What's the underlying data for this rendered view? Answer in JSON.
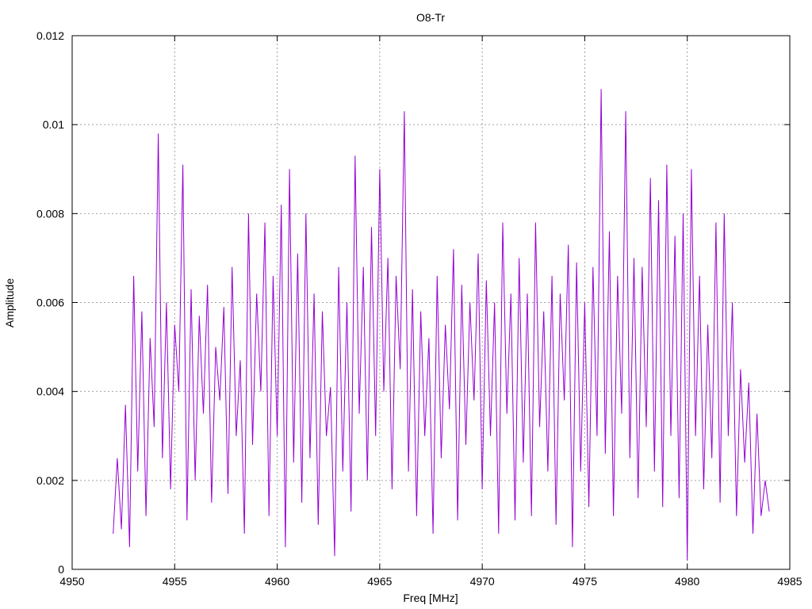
{
  "chart_data": {
    "type": "line",
    "title": "O8-Tr",
    "xlabel": "Freq [MHz]",
    "ylabel": "Amplitude",
    "xlim": [
      4950,
      4985
    ],
    "ylim": [
      0,
      0.012
    ],
    "x_ticks": [
      4950,
      4955,
      4960,
      4965,
      4970,
      4975,
      4980,
      4985
    ],
    "y_ticks": [
      0,
      0.002,
      0.004,
      0.006,
      0.008,
      0.01,
      0.012
    ],
    "x_tick_labels": [
      "4950",
      "4955",
      "4960",
      "4965",
      "4970",
      "4975",
      "4980",
      "4985"
    ],
    "y_tick_labels": [
      "0",
      "0.002",
      "0.004",
      "0.006",
      "0.008",
      "0.01",
      "0.012"
    ],
    "grid": true,
    "series": [
      {
        "color": "#9400d3",
        "points_note": "noisy spectrum, sampled envelope",
        "x": [
          4952.0,
          4952.2,
          4952.4,
          4952.6,
          4952.8,
          4953.0,
          4953.2,
          4953.4,
          4953.6,
          4953.8,
          4954.0,
          4954.2,
          4954.4,
          4954.6,
          4954.8,
          4955.0,
          4955.2,
          4955.4,
          4955.6,
          4955.8,
          4956.0,
          4956.2,
          4956.4,
          4956.6,
          4956.8,
          4957.0,
          4957.2,
          4957.4,
          4957.6,
          4957.8,
          4958.0,
          4958.2,
          4958.4,
          4958.6,
          4958.8,
          4959.0,
          4959.2,
          4959.4,
          4959.6,
          4959.8,
          4960.0,
          4960.2,
          4960.4,
          4960.6,
          4960.8,
          4961.0,
          4961.2,
          4961.4,
          4961.6,
          4961.8,
          4962.0,
          4962.2,
          4962.4,
          4962.6,
          4962.8,
          4963.0,
          4963.2,
          4963.4,
          4963.6,
          4963.8,
          4964.0,
          4964.2,
          4964.4,
          4964.6,
          4964.8,
          4965.0,
          4965.2,
          4965.4,
          4965.6,
          4965.8,
          4966.0,
          4966.2,
          4966.4,
          4966.6,
          4966.8,
          4967.0,
          4967.2,
          4967.4,
          4967.6,
          4967.8,
          4968.0,
          4968.2,
          4968.4,
          4968.6,
          4968.8,
          4969.0,
          4969.2,
          4969.4,
          4969.6,
          4969.8,
          4970.0,
          4970.2,
          4970.4,
          4970.6,
          4970.8,
          4971.0,
          4971.2,
          4971.4,
          4971.6,
          4971.8,
          4972.0,
          4972.2,
          4972.4,
          4972.6,
          4972.8,
          4973.0,
          4973.2,
          4973.4,
          4973.6,
          4973.8,
          4974.0,
          4974.2,
          4974.4,
          4974.6,
          4974.8,
          4975.0,
          4975.2,
          4975.4,
          4975.6,
          4975.8,
          4976.0,
          4976.2,
          4976.4,
          4976.6,
          4976.8,
          4977.0,
          4977.2,
          4977.4,
          4977.6,
          4977.8,
          4978.0,
          4978.2,
          4978.4,
          4978.6,
          4978.8,
          4979.0,
          4979.2,
          4979.4,
          4979.6,
          4979.8,
          4980.0,
          4980.2,
          4980.4,
          4980.6,
          4980.8,
          4981.0,
          4981.2,
          4981.4,
          4981.6,
          4981.8,
          4982.0,
          4982.2,
          4982.4,
          4982.6,
          4982.8,
          4983.0,
          4983.2,
          4983.4,
          4983.6,
          4983.8,
          4984.0
        ],
        "y": [
          0.0008,
          0.0025,
          0.0009,
          0.0037,
          0.0005,
          0.0066,
          0.0022,
          0.0058,
          0.0012,
          0.0052,
          0.0032,
          0.0098,
          0.0025,
          0.006,
          0.0018,
          0.0055,
          0.004,
          0.0091,
          0.0011,
          0.0063,
          0.002,
          0.0057,
          0.0035,
          0.0064,
          0.0015,
          0.005,
          0.0038,
          0.0059,
          0.0017,
          0.0068,
          0.003,
          0.0047,
          0.0008,
          0.008,
          0.0028,
          0.0062,
          0.004,
          0.0078,
          0.0012,
          0.0066,
          0.003,
          0.0082,
          0.0005,
          0.009,
          0.0024,
          0.0071,
          0.0015,
          0.008,
          0.0025,
          0.0062,
          0.001,
          0.0058,
          0.003,
          0.0041,
          0.0003,
          0.0068,
          0.0022,
          0.006,
          0.0013,
          0.0093,
          0.0035,
          0.0068,
          0.002,
          0.0077,
          0.003,
          0.009,
          0.004,
          0.007,
          0.0018,
          0.0066,
          0.0045,
          0.0103,
          0.0022,
          0.0063,
          0.0012,
          0.0058,
          0.003,
          0.0052,
          0.0008,
          0.0066,
          0.0025,
          0.0055,
          0.0036,
          0.0072,
          0.0011,
          0.0064,
          0.0028,
          0.006,
          0.0038,
          0.0071,
          0.0018,
          0.0065,
          0.003,
          0.006,
          0.0008,
          0.0078,
          0.0035,
          0.0062,
          0.0011,
          0.007,
          0.0024,
          0.0062,
          0.0012,
          0.0078,
          0.0032,
          0.0058,
          0.0022,
          0.0066,
          0.001,
          0.0062,
          0.0038,
          0.0073,
          0.0005,
          0.0069,
          0.0022,
          0.006,
          0.0014,
          0.0068,
          0.003,
          0.0108,
          0.0026,
          0.0076,
          0.0012,
          0.0066,
          0.0035,
          0.0103,
          0.0025,
          0.007,
          0.0016,
          0.0068,
          0.0032,
          0.0088,
          0.0022,
          0.0083,
          0.0014,
          0.0091,
          0.003,
          0.0075,
          0.0016,
          0.008,
          0.0002,
          0.009,
          0.003,
          0.0066,
          0.0018,
          0.0055,
          0.0025,
          0.0078,
          0.0015,
          0.008,
          0.003,
          0.006,
          0.0012,
          0.0045,
          0.0024,
          0.0042,
          0.0008,
          0.0035,
          0.0012,
          0.002,
          0.0013
        ]
      }
    ]
  }
}
